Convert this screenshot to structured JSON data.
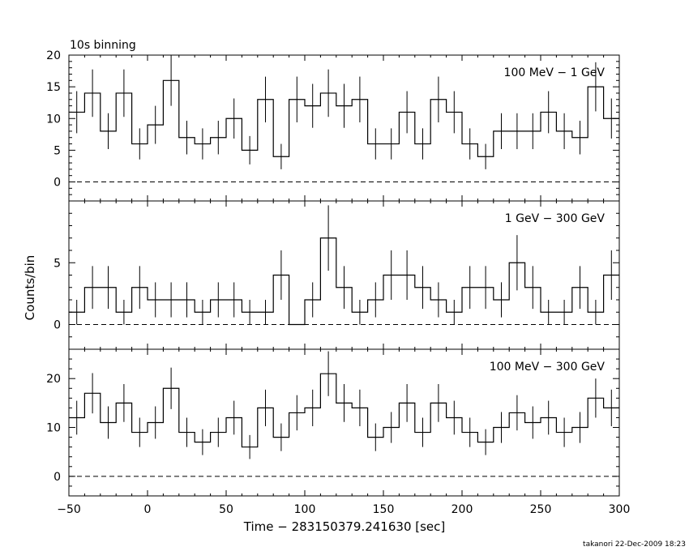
{
  "header": {
    "binning_label": "10s binning"
  },
  "axes": {
    "xlabel": "Time − 283150379.241630 [sec]",
    "ylabel": "Counts/bin",
    "x_ticks": [
      "−50",
      "0",
      "50",
      "100",
      "150",
      "200",
      "250",
      "300"
    ]
  },
  "footer": {
    "stamp": "takanori 22-Dec-2009 18:23"
  },
  "chart_data": [
    {
      "type": "line",
      "band": "100 MeV − 1 GeV",
      "x_start": -50,
      "bin_width": 10,
      "xlim": [
        -50,
        300
      ],
      "ylim": [
        -3,
        20
      ],
      "yticks": [
        0,
        5,
        10,
        15,
        20
      ],
      "values": [
        11,
        14,
        8,
        14,
        6,
        9,
        16,
        7,
        6,
        7,
        10,
        5,
        13,
        4,
        13,
        12,
        14,
        12,
        13,
        6,
        6,
        11,
        6,
        13,
        11,
        6,
        4,
        8,
        8,
        8,
        11,
        8,
        7,
        15,
        10
      ],
      "baseline": 0,
      "grid": false
    },
    {
      "type": "line",
      "band": "1 GeV − 300 GeV",
      "x_start": -50,
      "bin_width": 10,
      "xlim": [
        -50,
        300
      ],
      "ylim": [
        -2,
        10
      ],
      "yticks": [
        0,
        5
      ],
      "values": [
        1,
        3,
        3,
        1,
        3,
        2,
        2,
        2,
        1,
        2,
        2,
        1,
        1,
        4,
        0,
        2,
        7,
        3,
        1,
        2,
        4,
        4,
        3,
        2,
        1,
        3,
        3,
        2,
        5,
        3,
        1,
        1,
        3,
        1,
        4
      ],
      "baseline": 0,
      "grid": false
    },
    {
      "type": "line",
      "band": "100 MeV − 300 GeV",
      "x_start": -50,
      "bin_width": 10,
      "xlim": [
        -50,
        300
      ],
      "ylim": [
        -4,
        26
      ],
      "yticks": [
        0,
        10,
        20
      ],
      "values": [
        12,
        17,
        11,
        15,
        9,
        11,
        18,
        9,
        7,
        9,
        12,
        6,
        14,
        8,
        13,
        14,
        21,
        15,
        14,
        8,
        10,
        15,
        9,
        15,
        12,
        9,
        7,
        10,
        13,
        11,
        12,
        9,
        10,
        16,
        14
      ],
      "baseline": 0,
      "grid": false
    }
  ]
}
